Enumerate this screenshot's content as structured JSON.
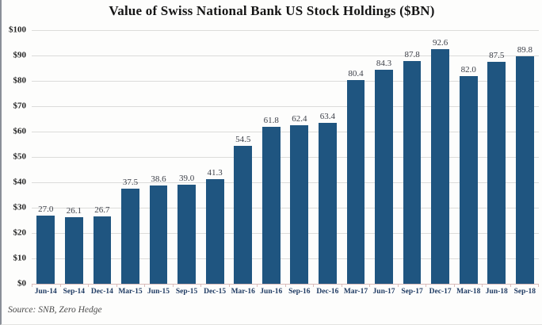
{
  "chart_data": {
    "type": "bar",
    "title": "Value of Swiss National Bank US Stock Holdings ($BN)",
    "categories": [
      "Jun-14",
      "Sep-14",
      "Dec-14",
      "Mar-15",
      "Jun-15",
      "Sep-15",
      "Dec-15",
      "Mar-16",
      "Jun-16",
      "Sep-16",
      "Dec-16",
      "Mar-17",
      "Jun-17",
      "Sep-17",
      "Dec-17",
      "Mar-18",
      "Jun-18",
      "Sep-18"
    ],
    "values": [
      27.0,
      26.1,
      26.7,
      37.5,
      38.6,
      39.0,
      41.3,
      54.5,
      61.8,
      62.4,
      63.4,
      80.4,
      84.3,
      87.8,
      92.6,
      82.0,
      87.5,
      89.8
    ],
    "value_labels": [
      "27.0",
      "26.1",
      "26.7",
      "37.5",
      "38.6",
      "39.0",
      "41.3",
      "54.5",
      "61.8",
      "62.4",
      "63.4",
      "80.4",
      "84.3",
      "87.8",
      "92.6",
      "82.0",
      "87.5",
      "89.8"
    ],
    "xlabel": "",
    "ylabel": "",
    "ylim": [
      0,
      100
    ],
    "yticks": [
      0,
      10,
      20,
      30,
      40,
      50,
      60,
      70,
      80,
      90,
      100
    ],
    "ytick_labels": [
      "$0",
      "$10",
      "$20",
      "$30",
      "$40",
      "$50",
      "$60",
      "$70",
      "$80",
      "$90",
      "$100"
    ],
    "grid": true,
    "legend": "none",
    "bar_color": "#1F5580",
    "source": "Source: SNB, Zero Hedge"
  }
}
